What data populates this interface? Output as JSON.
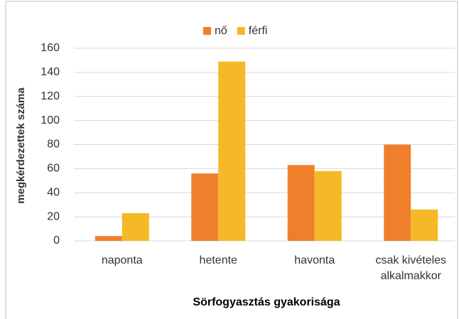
{
  "chart_data": {
    "type": "bar",
    "x_label": "Sörfogyasztás gyakorisága",
    "y_label": "megkérdezettek száma",
    "categories": [
      "naponta",
      "hetente",
      "havonta",
      "csak kivételes alkalmakkor"
    ],
    "series": [
      {
        "name": "nő",
        "color": "#f07f2c",
        "values": [
          4,
          56,
          63,
          80
        ]
      },
      {
        "name": "férfi",
        "color": "#f5b928",
        "values": [
          23,
          149,
          58,
          26
        ]
      }
    ],
    "ylim": [
      0,
      160
    ],
    "yticks": [
      0,
      20,
      40,
      60,
      80,
      100,
      120,
      140,
      160
    ],
    "grid": true,
    "legend": "top"
  }
}
